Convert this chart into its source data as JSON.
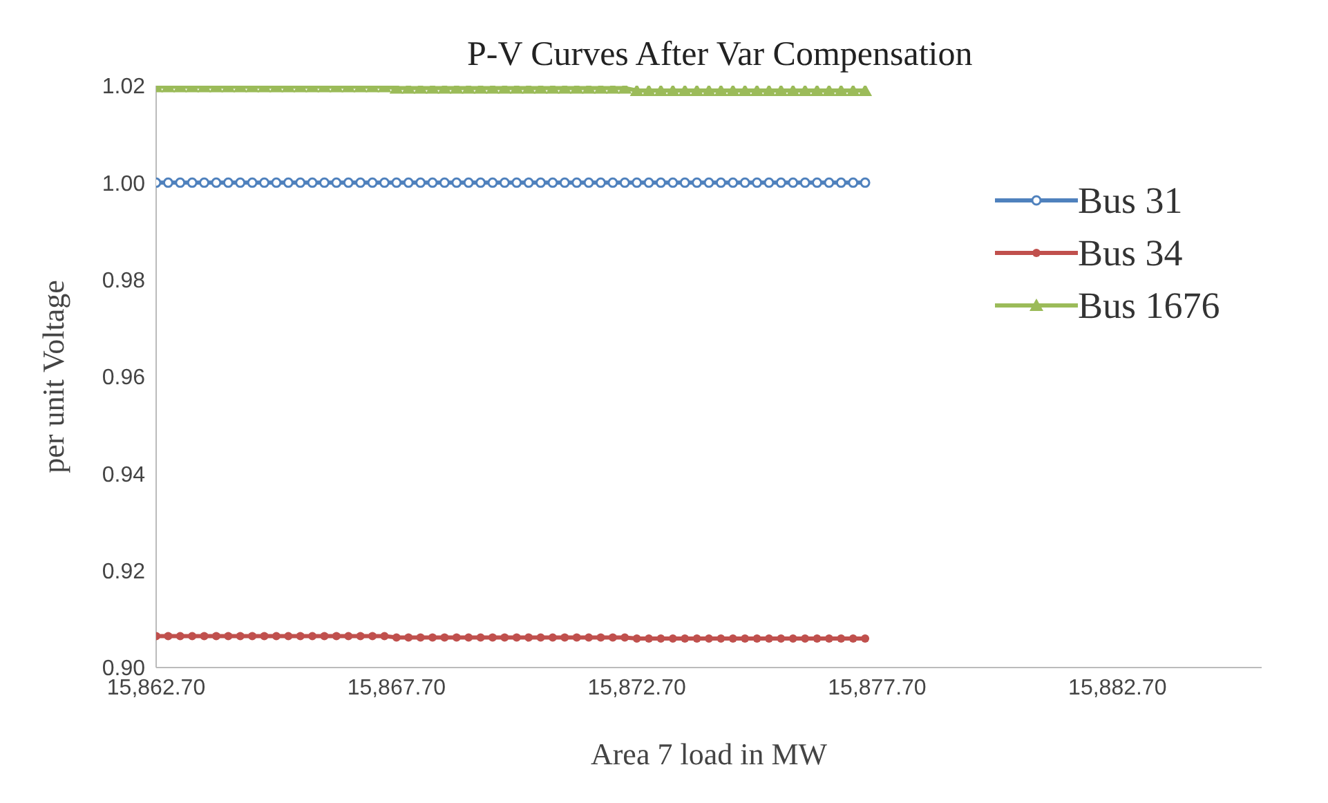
{
  "chart_data": {
    "type": "line",
    "title": "P-V Curves After Var Compensation",
    "xlabel": "Area 7 load in MW",
    "ylabel": "per unit Voltage",
    "x": [
      15862.7,
      15862.95,
      15863.2,
      15863.45,
      15863.7,
      15863.95,
      15864.2,
      15864.45,
      15864.7,
      15864.95,
      15865.2,
      15865.45,
      15865.7,
      15865.95,
      15866.2,
      15866.45,
      15866.7,
      15866.95,
      15867.2,
      15867.45,
      15867.7,
      15867.95,
      15868.2,
      15868.45,
      15868.7,
      15868.95,
      15869.2,
      15869.45,
      15869.7,
      15869.95,
      15870.2,
      15870.45,
      15870.7,
      15870.95,
      15871.2,
      15871.45,
      15871.7,
      15871.95,
      15872.2,
      15872.45,
      15872.7,
      15872.95,
      15873.2,
      15873.45,
      15873.7,
      15873.95,
      15874.2,
      15874.45,
      15874.7,
      15874.95,
      15875.2,
      15875.45,
      15875.7,
      15875.95,
      15876.2,
      15876.45,
      15876.7,
      15876.95,
      15877.2,
      15877.45
    ],
    "series": [
      {
        "name": "Bus 31",
        "color": "#4f81bd",
        "marker": "circle",
        "values": [
          1,
          1,
          1,
          1,
          1,
          1,
          1,
          1,
          1,
          1,
          1,
          1,
          1,
          1,
          1,
          1,
          1,
          1,
          1,
          1,
          1,
          1,
          1,
          1,
          1,
          1,
          1,
          1,
          1,
          1,
          1,
          1,
          1,
          1,
          1,
          1,
          1,
          1,
          1,
          1,
          1,
          1,
          1,
          1,
          1,
          1,
          1,
          1,
          1,
          1,
          1,
          1,
          1,
          1,
          1,
          1,
          1,
          1,
          1,
          1
        ]
      },
      {
        "name": "Bus 34",
        "color": "#c0504d",
        "marker": "circle",
        "values": [
          0.9065,
          0.9065,
          0.9065,
          0.9065,
          0.9065,
          0.9065,
          0.9065,
          0.9065,
          0.9065,
          0.9065,
          0.9065,
          0.9065,
          0.9065,
          0.9065,
          0.9065,
          0.9065,
          0.9065,
          0.9065,
          0.9065,
          0.9065,
          0.9062,
          0.9062,
          0.9062,
          0.9062,
          0.9062,
          0.9062,
          0.9062,
          0.9062,
          0.9062,
          0.9062,
          0.9062,
          0.9062,
          0.9062,
          0.9062,
          0.9062,
          0.9062,
          0.9062,
          0.9062,
          0.9062,
          0.9062,
          0.906,
          0.906,
          0.906,
          0.906,
          0.906,
          0.906,
          0.906,
          0.906,
          0.906,
          0.906,
          0.906,
          0.906,
          0.906,
          0.906,
          0.906,
          0.906,
          0.906,
          0.906,
          0.906,
          0.906
        ]
      },
      {
        "name": "Bus 1676",
        "color": "#9bbb59",
        "marker": "triangle",
        "values": [
          1.0198,
          1.0198,
          1.0198,
          1.0198,
          1.0198,
          1.0198,
          1.0198,
          1.0198,
          1.0198,
          1.0198,
          1.0198,
          1.0198,
          1.0198,
          1.0198,
          1.0198,
          1.0198,
          1.0198,
          1.0198,
          1.0198,
          1.0198,
          1.0195,
          1.0195,
          1.0195,
          1.0195,
          1.0195,
          1.0195,
          1.0195,
          1.0195,
          1.0195,
          1.0195,
          1.0195,
          1.0195,
          1.0195,
          1.0195,
          1.0195,
          1.0195,
          1.0195,
          1.0195,
          1.0195,
          1.0195,
          1.019,
          1.019,
          1.019,
          1.019,
          1.019,
          1.019,
          1.019,
          1.019,
          1.019,
          1.019,
          1.019,
          1.019,
          1.019,
          1.019,
          1.019,
          1.019,
          1.019,
          1.019,
          1.019,
          1.019
        ]
      }
    ],
    "xlim": [
      15862.7,
      15885.7
    ],
    "xticks": [
      {
        "value": 15862.7,
        "label": "15,862.70"
      },
      {
        "value": 15867.7,
        "label": "15,867.70"
      },
      {
        "value": 15872.7,
        "label": "15,872.70"
      },
      {
        "value": 15877.7,
        "label": "15,877.70"
      },
      {
        "value": 15882.7,
        "label": "15,882.70"
      }
    ],
    "ylim": [
      0.9,
      1.02
    ],
    "yticks": [
      {
        "value": 0.9,
        "label": "0.90"
      },
      {
        "value": 0.92,
        "label": "0.92"
      },
      {
        "value": 0.94,
        "label": "0.94"
      },
      {
        "value": 0.96,
        "label": "0.96"
      },
      {
        "value": 0.98,
        "label": "0.98"
      },
      {
        "value": 1,
        "label": "1.00"
      },
      {
        "value": 1.02,
        "label": "1.02"
      }
    ],
    "grid": false,
    "legend": "right",
    "line_style": "solid"
  }
}
